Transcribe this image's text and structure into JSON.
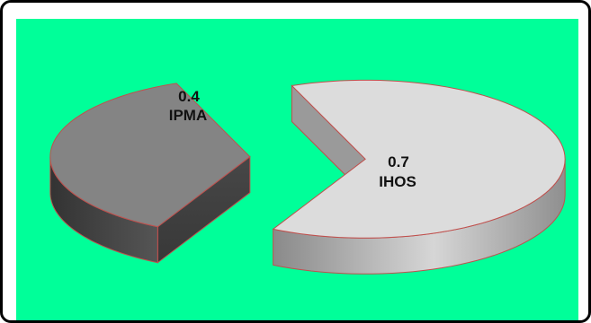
{
  "chart_data": {
    "type": "pie",
    "three_d": true,
    "exploded": true,
    "background_color": "#00ff99",
    "slices": [
      {
        "name": "IPMA",
        "value": 0.4,
        "color": "#848484"
      },
      {
        "name": "IHOS",
        "value": 0.7,
        "color": "#dcdcdc"
      }
    ]
  }
}
